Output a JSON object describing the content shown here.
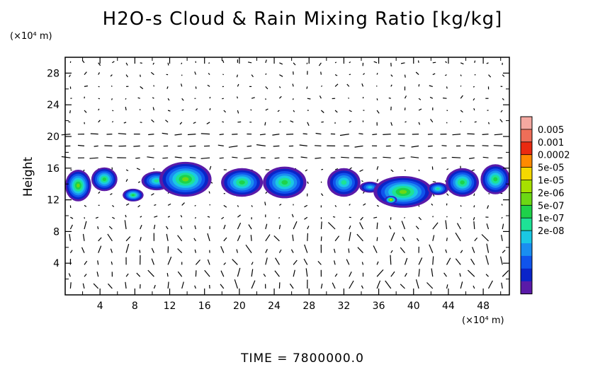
{
  "title": "H2O-s Cloud & Rain Mixing Ratio [kg/kg]",
  "y_unit": "(×10⁴ m)",
  "x_unit": "(×10⁴ m)",
  "ylabel": "Height",
  "footer": "TIME  =  7800000.0",
  "chart_data": {
    "type": "heatmap",
    "title": "H2O-s Cloud & Rain Mixing Ratio [kg/kg]",
    "ylabel": "Height",
    "xlabel": "",
    "xlim": [
      0,
      51
    ],
    "ylim": [
      0,
      30
    ],
    "xticks": [
      "4",
      "8",
      "12",
      "16",
      "20",
      "24",
      "28",
      "32",
      "36",
      "40",
      "44",
      "48"
    ],
    "yticks": [
      "4",
      "8",
      "12",
      "16",
      "20",
      "24",
      "28"
    ],
    "grid": false,
    "overlay": "wind vectors",
    "colorbar": {
      "labels": [
        "0.005",
        "0.001",
        "0.0002",
        "5e-05",
        "1e-05",
        "2e-06",
        "5e-07",
        "1e-07",
        "2e-08"
      ],
      "colors": [
        "#f4a8a0",
        "#ee6e58",
        "#ea2a10",
        "#ff8a00",
        "#f4d800",
        "#a6e000",
        "#6cd814",
        "#1ed24a",
        "#1ee296",
        "#1ac8e4",
        "#1a8ef0",
        "#1054ec",
        "#0a24c8",
        "#5a1aa8"
      ]
    },
    "cloud_blobs": [
      {
        "x": 1.5,
        "y": 13.8,
        "w": 3.0,
        "h": 4.0,
        "level": 6
      },
      {
        "x": 4.5,
        "y": 14.6,
        "w": 3.0,
        "h": 3.0,
        "level": 7
      },
      {
        "x": 7.8,
        "y": 12.6,
        "w": 2.4,
        "h": 1.6,
        "level": 7
      },
      {
        "x": 10.5,
        "y": 14.4,
        "w": 3.5,
        "h": 2.4,
        "level": 8
      },
      {
        "x": 13.8,
        "y": 14.6,
        "w": 6.0,
        "h": 4.4,
        "level": 6
      },
      {
        "x": 20.3,
        "y": 14.2,
        "w": 4.8,
        "h": 3.6,
        "level": 7
      },
      {
        "x": 25.2,
        "y": 14.2,
        "w": 5.0,
        "h": 4.0,
        "level": 7
      },
      {
        "x": 32.0,
        "y": 14.2,
        "w": 3.8,
        "h": 3.6,
        "level": 8
      },
      {
        "x": 35.0,
        "y": 13.6,
        "w": 2.4,
        "h": 1.4,
        "level": 9
      },
      {
        "x": 38.8,
        "y": 13.0,
        "w": 6.8,
        "h": 4.0,
        "level": 6
      },
      {
        "x": 37.4,
        "y": 12.0,
        "w": 1.4,
        "h": 1.0,
        "level": 4
      },
      {
        "x": 42.8,
        "y": 13.4,
        "w": 2.4,
        "h": 1.6,
        "level": 8
      },
      {
        "x": 45.6,
        "y": 14.2,
        "w": 3.8,
        "h": 3.6,
        "level": 7
      },
      {
        "x": 49.4,
        "y": 14.6,
        "w": 3.4,
        "h": 3.8,
        "level": 7
      }
    ]
  }
}
